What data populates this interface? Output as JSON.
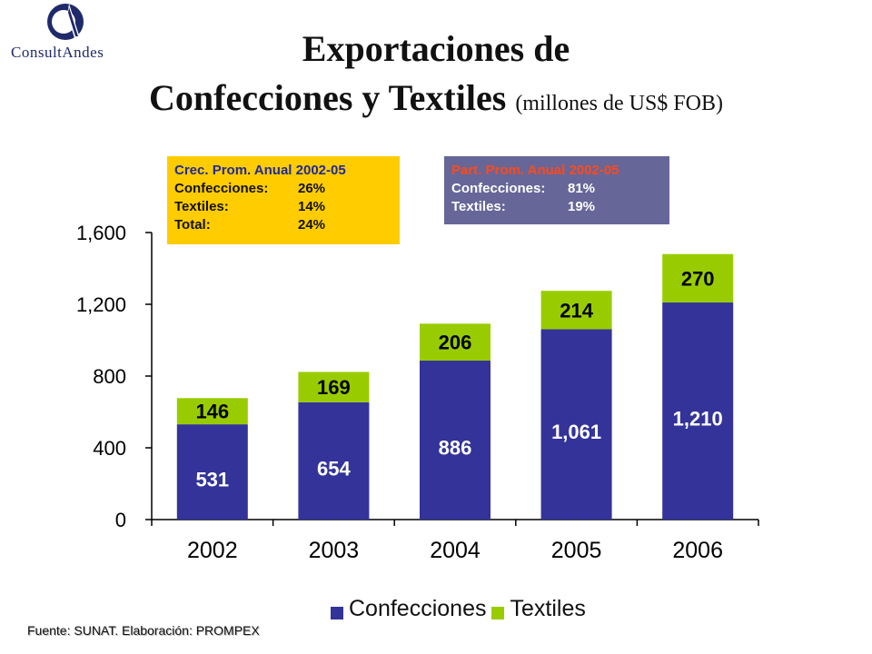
{
  "logo": {
    "text": "ConsultAndes",
    "initials": "CA"
  },
  "title": {
    "line1": "Exportaciones de",
    "line2": "Confecciones y Textiles",
    "unit": "(millones de US$ FOB)"
  },
  "growth_box": {
    "header": "Crec. Prom. Anual 2002-05",
    "rows": [
      {
        "label": "Confecciones:",
        "value": "26%"
      },
      {
        "label": "Textiles:",
        "value": "14%"
      },
      {
        "label": "Total:",
        "value": "24%"
      }
    ]
  },
  "share_box": {
    "header": "Part. Prom. Anual 2002-05",
    "rows": [
      {
        "label": "Confecciones:",
        "value": "81%"
      },
      {
        "label": "Textiles:",
        "value": "19%"
      }
    ]
  },
  "legend": {
    "confecciones": "Confecciones",
    "textiles": "Textiles"
  },
  "source": "Fuente: SUNAT.  Elaboración: PROMPEX",
  "colors": {
    "confecciones": "#333399",
    "textiles": "#99cc00"
  },
  "chart_data": {
    "type": "bar",
    "stacked": true,
    "categories": [
      "2002",
      "2003",
      "2004",
      "2005",
      "2006"
    ],
    "series": [
      {
        "name": "Confecciones",
        "values": [
          531,
          654,
          886,
          1061,
          1210
        ],
        "labels": [
          "531",
          "654",
          "886",
          "1,061",
          "1,210"
        ]
      },
      {
        "name": "Textiles",
        "values": [
          146,
          169,
          206,
          214,
          270
        ],
        "labels": [
          "146",
          "169",
          "206",
          "214",
          "270"
        ]
      }
    ],
    "ylim": [
      0,
      1600
    ],
    "yticks": [
      0,
      400,
      800,
      1200,
      1600
    ],
    "ytick_labels": [
      "0",
      "400",
      "800",
      "1,200",
      "1,600"
    ],
    "grid": false,
    "legend_position": "bottom"
  }
}
